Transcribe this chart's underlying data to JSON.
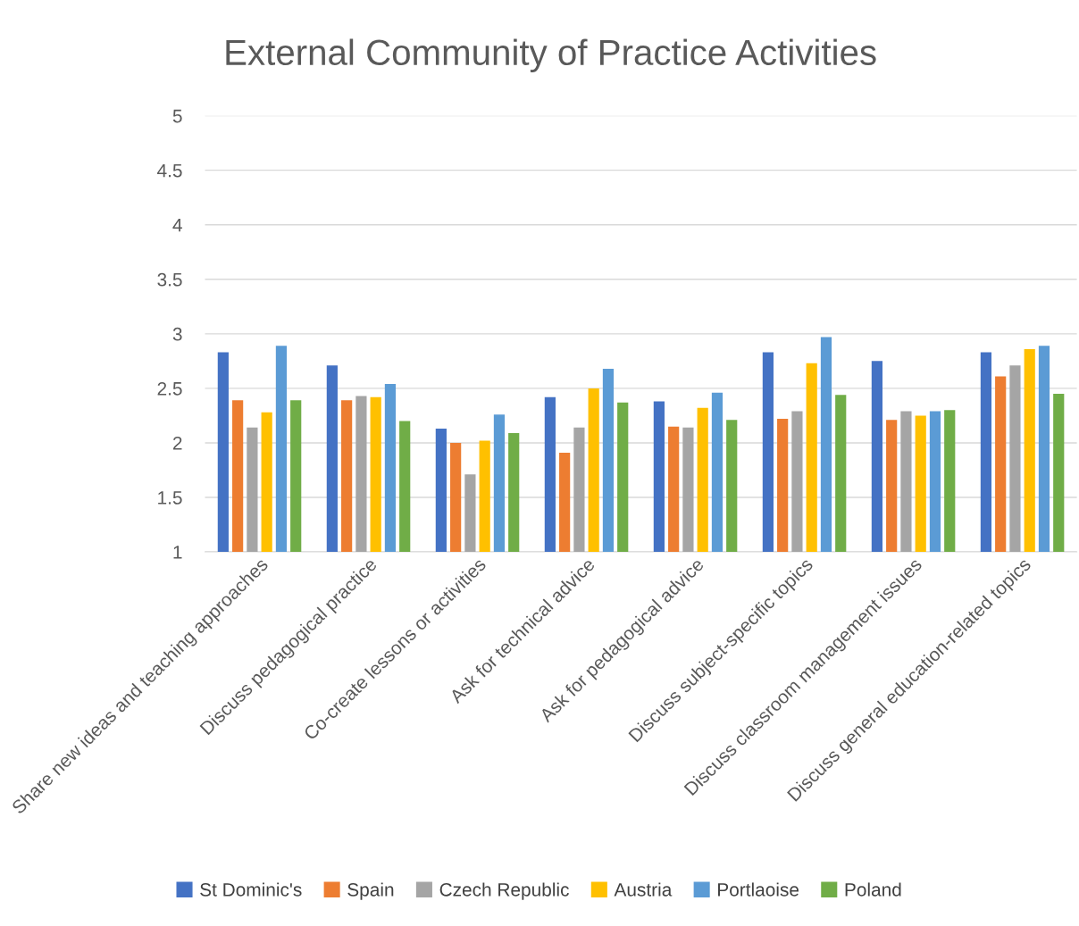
{
  "chart_data": {
    "type": "bar",
    "title": "External Community of Practice Activities",
    "categories": [
      "Share new ideas and teaching approaches",
      "Discuss pedagogical practice",
      "Co-create lessons or activities",
      "Ask for technical advice",
      "Ask for pedagogical advice",
      "Discuss subject-specific topics",
      "Discuss classroom management issues",
      "Discuss general education-related topics"
    ],
    "series": [
      {
        "name": "St Dominic's",
        "color": "#4472c4",
        "values": [
          2.83,
          2.71,
          2.13,
          2.42,
          2.38,
          2.83,
          2.75,
          2.83
        ]
      },
      {
        "name": "Spain",
        "color": "#ed7d31",
        "values": [
          2.39,
          2.39,
          2.0,
          1.91,
          2.15,
          2.22,
          2.21,
          2.61
        ]
      },
      {
        "name": "Czech Republic",
        "color": "#a5a5a5",
        "values": [
          2.14,
          2.43,
          1.71,
          2.14,
          2.14,
          2.29,
          2.29,
          2.71
        ]
      },
      {
        "name": "Austria",
        "color": "#ffc000",
        "values": [
          2.28,
          2.42,
          2.02,
          2.5,
          2.32,
          2.73,
          2.25,
          2.86
        ]
      },
      {
        "name": "Portlaoise",
        "color": "#5b9bd5",
        "values": [
          2.89,
          2.54,
          2.26,
          2.68,
          2.46,
          2.97,
          2.29,
          2.89
        ]
      },
      {
        "name": "Poland",
        "color": "#70ad47",
        "values": [
          2.39,
          2.2,
          2.09,
          2.37,
          2.21,
          2.44,
          2.3,
          2.45
        ]
      }
    ],
    "ylim": [
      1,
      5
    ],
    "yticks": [
      1,
      1.5,
      2,
      2.5,
      3,
      3.5,
      4,
      4.5,
      5
    ],
    "grid": "y",
    "legend": "bottom"
  }
}
